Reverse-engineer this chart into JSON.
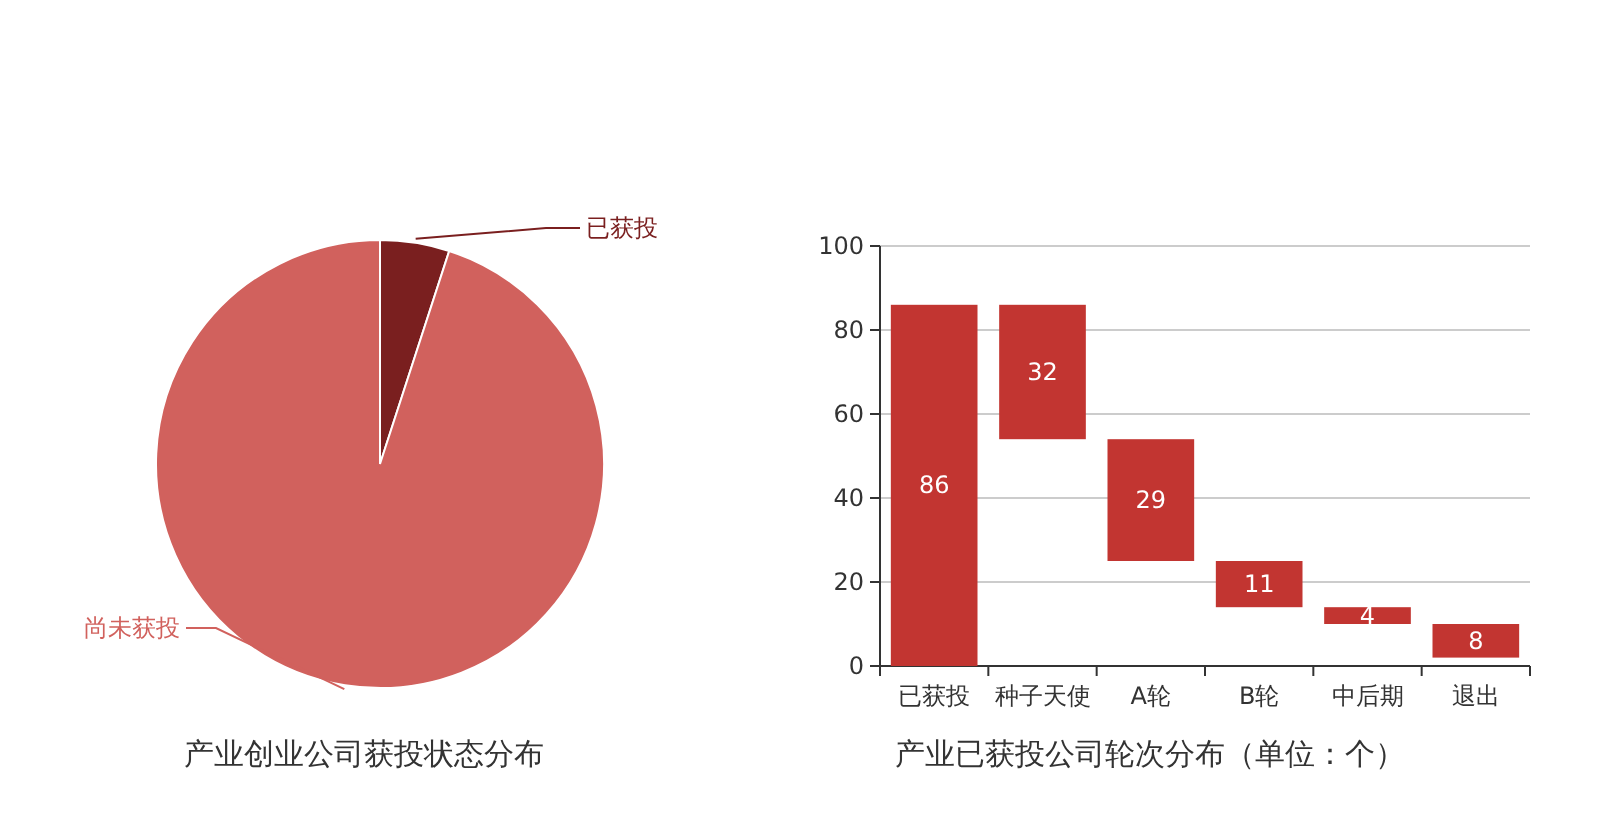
{
  "chart_data": [
    {
      "type": "pie",
      "title": "产业创业公司获投状态分布",
      "categories": [
        "已获投",
        "尚未获投"
      ],
      "values": [
        5,
        95
      ],
      "colors": [
        "#7a1f1f",
        "#d1615d"
      ]
    },
    {
      "type": "bar",
      "title": "产业已获投公司轮次分布（单位：个）",
      "categories": [
        "已获投",
        "种子天使",
        "A轮",
        "B轮",
        "中后期",
        "退出"
      ],
      "values": [
        86,
        32,
        29,
        11,
        4,
        8
      ],
      "base": [
        0,
        54,
        25,
        14,
        10,
        2
      ],
      "color": "#c23531",
      "ylim": [
        0,
        100
      ],
      "yticks": [
        0,
        20,
        40,
        60,
        80,
        100
      ],
      "grid": "y",
      "data_labels": true
    }
  ]
}
